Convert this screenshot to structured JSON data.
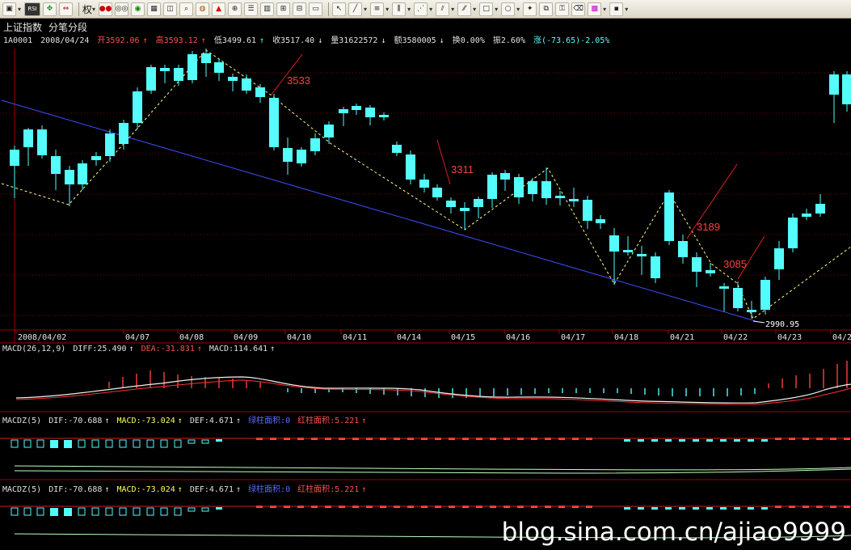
{
  "toolbar": {
    "quan_label": "权",
    "rsi_label": "RSI",
    "icons": [
      "folder-icon",
      "rsi-icon",
      "move-icon",
      "exchange-icon",
      "weight-icon",
      "glasses-icon",
      "double-circle-icon",
      "spreadsheet-icon",
      "stats-icon",
      "box-icon",
      "search-doc-icon",
      "target-icon",
      "alert-icon",
      "zoom-icon",
      "grid-icon",
      "window-icon",
      "window-plus-icon",
      "window-minus-icon",
      "monitor-icon",
      "cursor-icon",
      "pen-icon",
      "lines-icon",
      "vertical-lines-icon",
      "fan-icon",
      "channel-icon",
      "parallel-icon",
      "rectangle-icon",
      "circle-icon",
      "star-icon",
      "copy-icon",
      "lock-icon",
      "eraser-icon",
      "palette-icon",
      "save-icon"
    ]
  },
  "header": {
    "index_name": "上证指数",
    "mode": "分笔分段"
  },
  "quote": {
    "code": "1A0001",
    "date": "2008/04/24",
    "open": "开3592.06",
    "high": "高3593.12",
    "low": "低3499.61",
    "close": "收3517.40",
    "volume": "量31622572",
    "amount": "额3580005",
    "turnover": "换0.00%",
    "amplitude": "振2.60%",
    "change": "涨(-73.65)-2.05%"
  },
  "chart_data": {
    "type": "candlestick",
    "x_labels": [
      "2008/04/02",
      "04/07",
      "04/08",
      "04/09",
      "04/10",
      "04/11",
      "04/14",
      "04/15",
      "04/16",
      "04/17",
      "04/18",
      "04/21",
      "04/22",
      "04/23",
      "04/2"
    ],
    "annotations": [
      "3533",
      "3311",
      "3189",
      "3085",
      "2990.95"
    ],
    "macd": {
      "label": "MACD(26,12,9)",
      "diff": "DIFF:25.490",
      "dea": "DEA:-31.831",
      "macd": "MACD:114.641"
    },
    "macdz1": {
      "label": "MACDZ(5)",
      "dif": "DIF:-70.688",
      "macd": "MACD:-73.024",
      "def": "DEF:4.671",
      "green_area": "绿柱面积:0",
      "red_area": "红柱面积:5.221"
    },
    "macdz2": {
      "label": "MACDZ(5)",
      "dif": "DIF:-70.688",
      "macd": "MACD:-73.024",
      "def": "DEF:4.671",
      "green_area": "绿柱面积:0",
      "red_area": "红柱面积:5.221"
    },
    "colors": {
      "up": "#ff3232",
      "down": "#54fcfc",
      "trend": "#3c50ff",
      "zigzag": "#ffff80"
    }
  },
  "watermark": "blog.sina.com.cn/ajiao9999"
}
